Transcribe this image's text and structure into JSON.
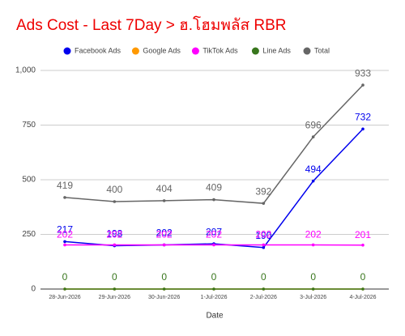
{
  "chart_data": {
    "type": "line",
    "title": "Ads Cost - Last 7Day > ฮ.โฮมพลัส RBR",
    "x_label": "Date",
    "categories": [
      "28-Jun-2026",
      "29-Jun-2026",
      "30-Jun-2026",
      "1-Jul-2026",
      "2-Jul-2026",
      "3-Jul-2026",
      "4-Jul-2026"
    ],
    "series": [
      {
        "name": "Facebook Ads",
        "color": "#0000ee",
        "values": [
          217,
          198,
          202,
          207,
          190,
          494,
          732
        ]
      },
      {
        "name": "Google Ads",
        "color": "#ff9900",
        "values": [
          0,
          0,
          0,
          0,
          0,
          0,
          0
        ]
      },
      {
        "name": "TikTok Ads",
        "color": "#ff00ff",
        "values": [
          202,
          202,
          202,
          202,
          202,
          202,
          201
        ]
      },
      {
        "name": "Line Ads",
        "color": "#38761d",
        "values": [
          0,
          0,
          0,
          0,
          0,
          0,
          0
        ]
      },
      {
        "name": "Total",
        "color": "#666666",
        "values": [
          419,
          400,
          404,
          409,
          392,
          696,
          933
        ]
      }
    ],
    "ylim": [
      0,
      1000
    ],
    "yticks": [
      0,
      250,
      500,
      750,
      {
        "value": 1000,
        "label": "1,000"
      }
    ],
    "grid": true,
    "legend": "top"
  }
}
